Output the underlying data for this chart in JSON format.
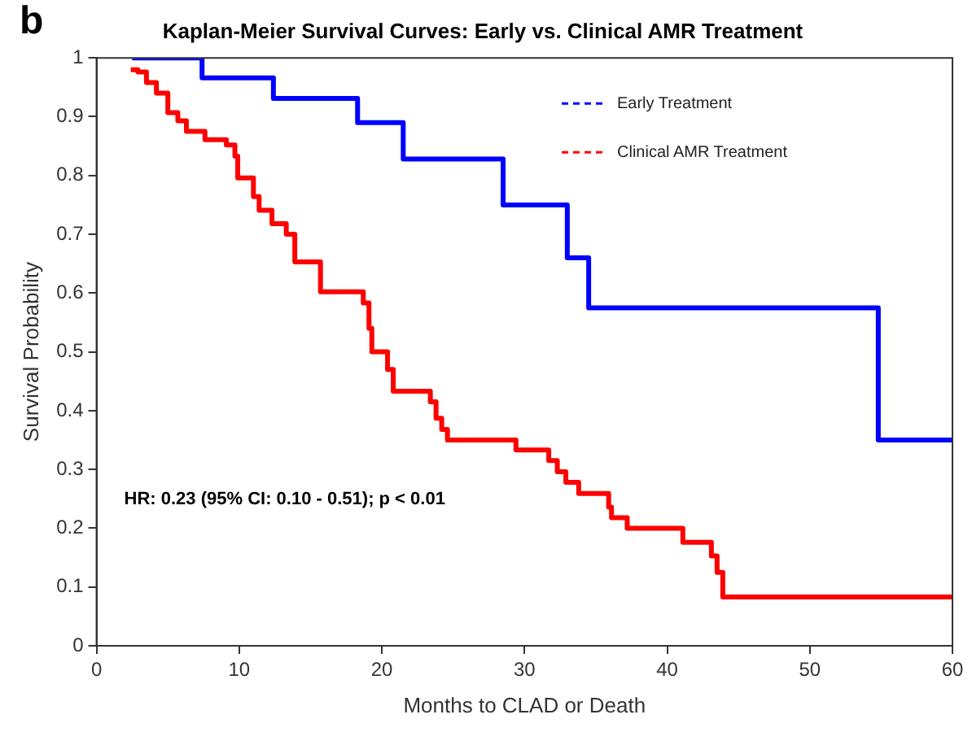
{
  "chart_data": {
    "type": "step",
    "title": "Kaplan-Meier Survival Curves: Early vs. Clinical AMR Treatment",
    "xlabel": "Months to CLAD or Death",
    "ylabel": "Survival Probability",
    "annotations": [
      "b",
      "HR: 0.23 (95% CI: 0.10 - 0.51); p < 0.01"
    ],
    "series": [
      {
        "name": "Early Treatment",
        "color": "#0000ff",
        "x": [
          2.5,
          7.4,
          12.4,
          18.3,
          21.5,
          28.5,
          33.0,
          34.5,
          54.8,
          60
        ],
        "values": [
          1,
          0.966,
          0.931,
          0.89,
          0.828,
          0.75,
          0.66,
          0.575,
          0.35,
          0.35
        ]
      },
      {
        "name": "Clinical AMR Treatment",
        "color": "#ff0000",
        "x": [
          2.4,
          2.9,
          3.5,
          4.2,
          5.0,
          5.7,
          6.3,
          7.6,
          9.1,
          9.7,
          9.9,
          11.0,
          11.4,
          12.3,
          13.3,
          13.9,
          15.7,
          18.7,
          19.1,
          19.3,
          20.4,
          20.8,
          23.4,
          23.8,
          24.2,
          24.6,
          29.4,
          31.7,
          32.3,
          32.9,
          33.8,
          35.9,
          36.1,
          37.2,
          41.1,
          43.1,
          43.5,
          43.9,
          60
        ],
        "values": [
          0.98,
          0.976,
          0.958,
          0.94,
          0.907,
          0.893,
          0.875,
          0.861,
          0.852,
          0.833,
          0.796,
          0.764,
          0.741,
          0.718,
          0.7,
          0.653,
          0.602,
          0.583,
          0.54,
          0.5,
          0.47,
          0.433,
          0.415,
          0.387,
          0.368,
          0.35,
          0.333,
          0.315,
          0.296,
          0.278,
          0.259,
          0.236,
          0.218,
          0.2,
          0.176,
          0.153,
          0.125,
          0.083,
          0.083
        ]
      }
    ],
    "xlim": [
      0,
      60
    ],
    "xticks": [
      0,
      10,
      20,
      30,
      40,
      50,
      60
    ],
    "ylim": [
      0,
      1
    ],
    "yticks": [
      0,
      0.1,
      0.2,
      0.3,
      0.4,
      0.5,
      0.6,
      0.7,
      0.8,
      0.9,
      1
    ],
    "grid": false,
    "legend": "top right",
    "marker": "none",
    "line_style": "solid"
  }
}
